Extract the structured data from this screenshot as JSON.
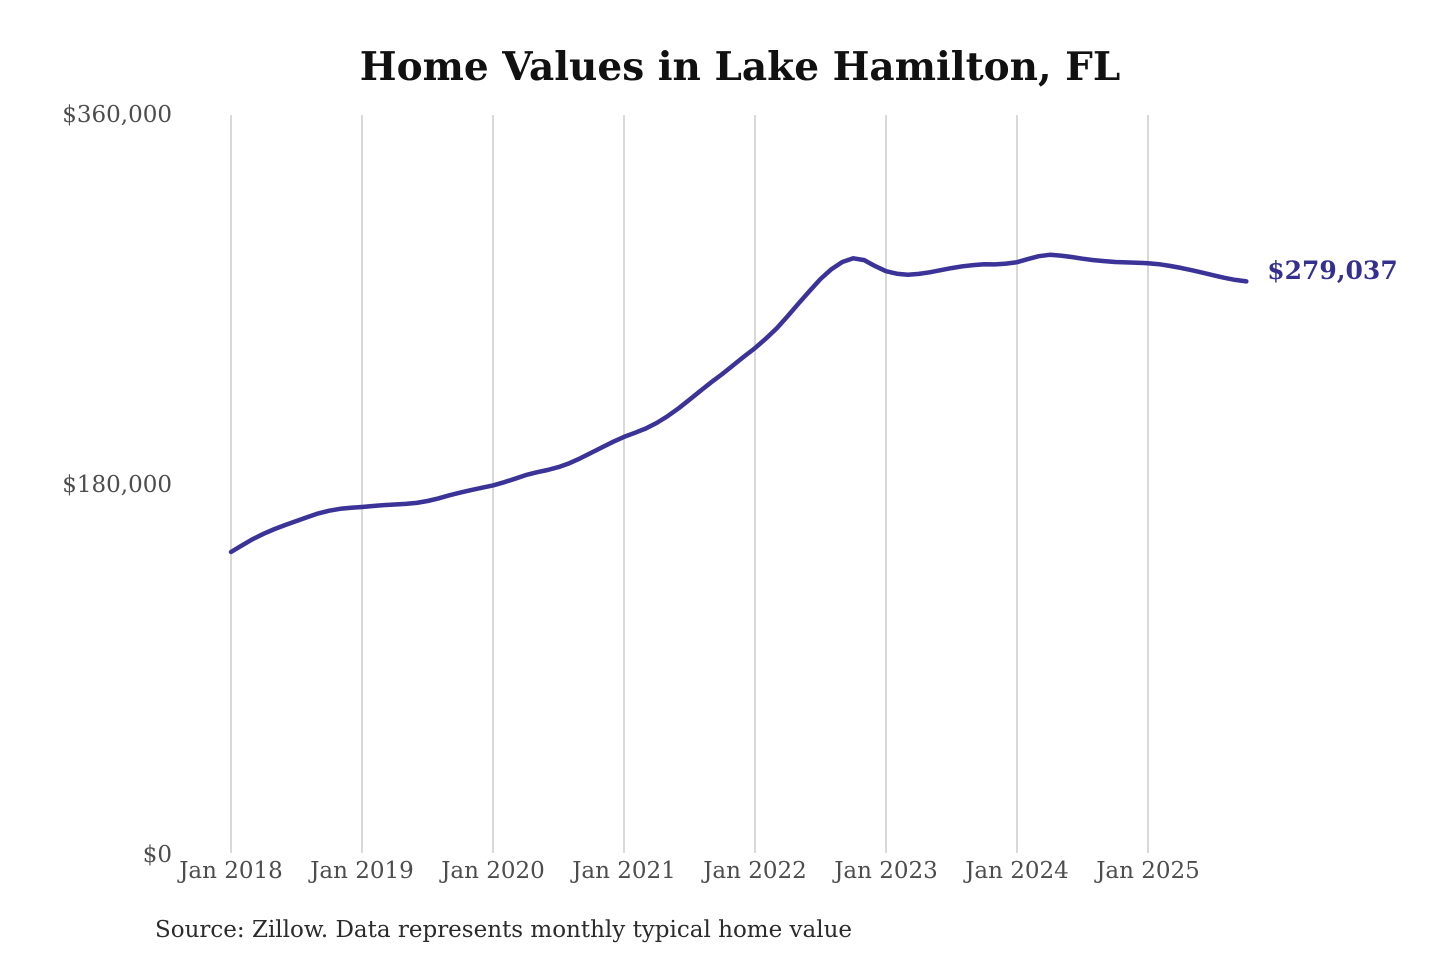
{
  "page": {
    "background_color": "#ffffff"
  },
  "chart_data": {
    "type": "line",
    "title": "Home Values in Lake Hamilton, FL",
    "source_note": "Source: Zillow. Data represents monthly typical home value",
    "end_label": "$279,037",
    "last_value": 279037,
    "line_color": "#3b3397",
    "end_label_color": "#35308f",
    "grid_color": "#c9c9c9",
    "axis_text_color": "#4d4d4d",
    "title_color": "#111111",
    "ylim": [
      0,
      360000
    ],
    "grid": "vertical-only",
    "legend": "none",
    "y_ticks": [
      {
        "label": "$0",
        "value": 0
      },
      {
        "label": "$180,000",
        "value": 180000
      },
      {
        "label": "$360,000",
        "value": 360000
      }
    ],
    "x_ticks": [
      {
        "label": "Jan 2018",
        "month_index": 0
      },
      {
        "label": "Jan 2019",
        "month_index": 12
      },
      {
        "label": "Jan 2020",
        "month_index": 24
      },
      {
        "label": "Jan 2021",
        "month_index": 36
      },
      {
        "label": "Jan 2022",
        "month_index": 48
      },
      {
        "label": "Jan 2023",
        "month_index": 60
      },
      {
        "label": "Jan 2024",
        "month_index": 72
      },
      {
        "label": "Jan 2025",
        "month_index": 84
      }
    ],
    "series": [
      {
        "name": "Monthly typical home value",
        "start_month": "Jan 2018",
        "end_month": "Oct 2025",
        "frequency": "monthly",
        "values": [
          147400,
          150600,
          153700,
          156300,
          158600,
          160600,
          162500,
          164400,
          166200,
          167500,
          168400,
          168900,
          169300,
          169800,
          170200,
          170500,
          170800,
          171300,
          172200,
          173500,
          175000,
          176300,
          177500,
          178700,
          179800,
          181300,
          183000,
          184800,
          186200,
          187300,
          188700,
          190600,
          193000,
          195700,
          198400,
          201000,
          203400,
          205400,
          207500,
          210200,
          213500,
          217300,
          221500,
          225800,
          230000,
          234000,
          238300,
          242500,
          246600,
          251200,
          256300,
          262200,
          268400,
          274400,
          280200,
          285000,
          288500,
          290300,
          289400,
          286500,
          284000,
          282800,
          282300,
          282700,
          283500,
          284500,
          285500,
          286400,
          287000,
          287400,
          287300,
          287700,
          288400,
          289900,
          291300,
          292000,
          291600,
          290900,
          290100,
          289400,
          288900,
          288500,
          288300,
          288100,
          287900,
          287400,
          286600,
          285600,
          284500,
          283300,
          282000,
          280800,
          279800,
          279037
        ]
      }
    ]
  }
}
